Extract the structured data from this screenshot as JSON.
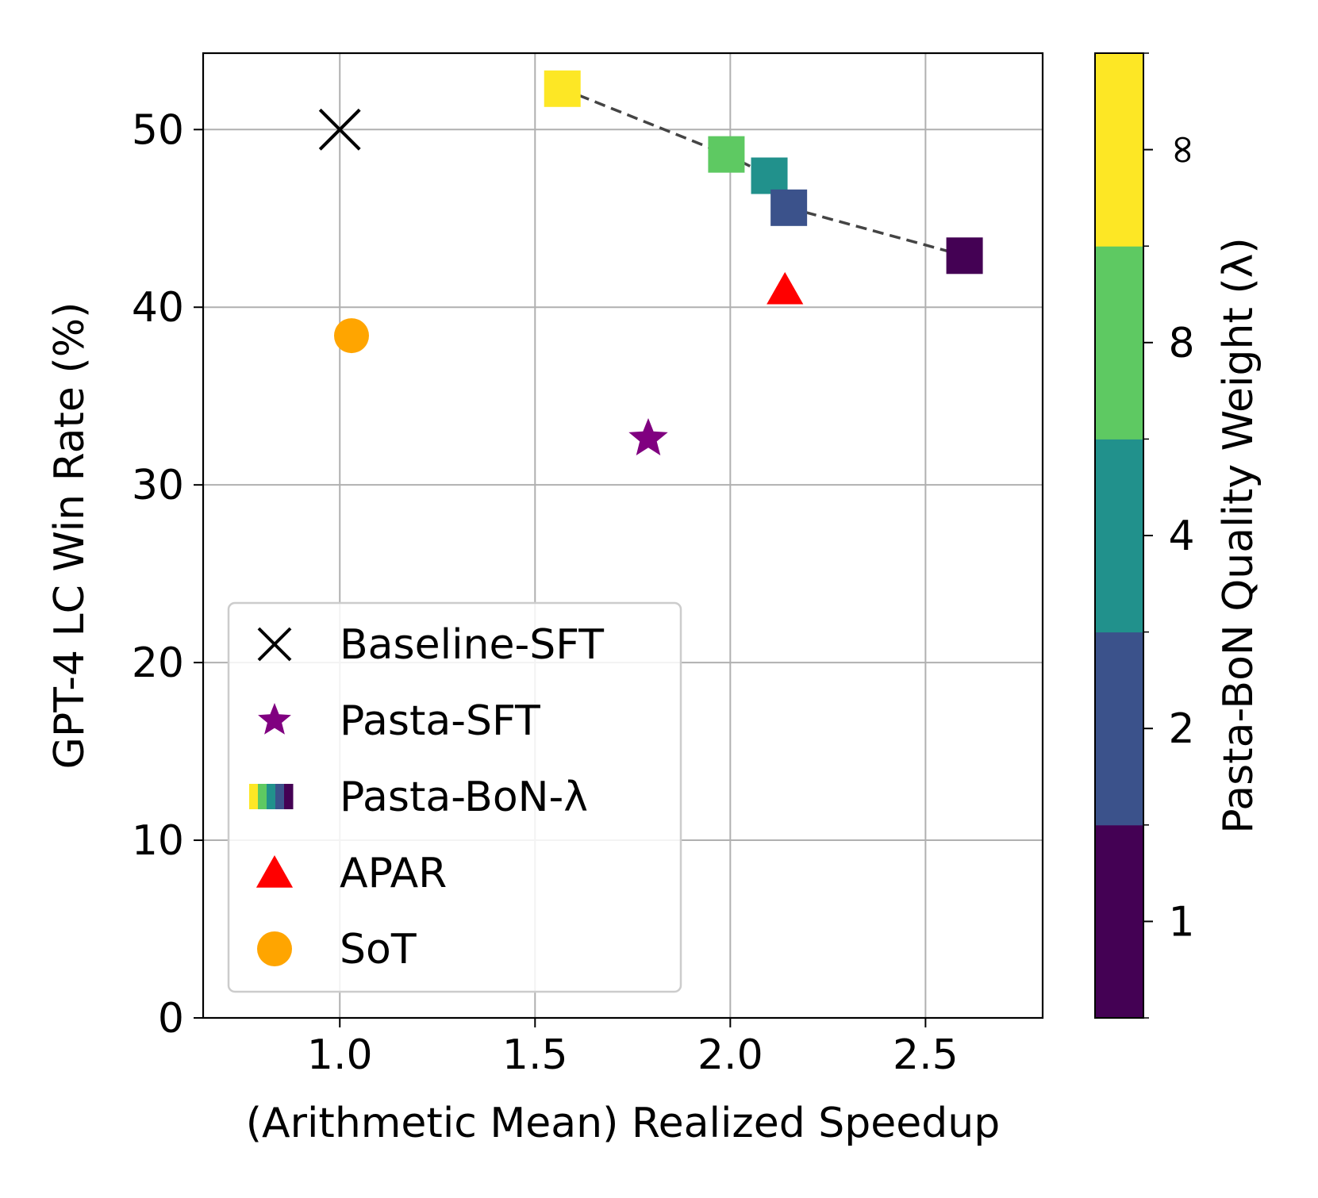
{
  "chart_data": {
    "type": "scatter",
    "title": "",
    "xlabel": "(Arithmetic Mean) Realized Speedup",
    "ylabel": "GPT-4 LC Win Rate (%)",
    "xlim": [
      0.65,
      2.8
    ],
    "ylim": [
      0,
      54.3
    ],
    "xticks": [
      1.0,
      1.5,
      2.0,
      2.5
    ],
    "xtick_labels": [
      "1.0",
      "1.5",
      "2.0",
      "2.5"
    ],
    "yticks": [
      0,
      10,
      20,
      30,
      40,
      50
    ],
    "ytick_labels": [
      "0",
      "10",
      "20",
      "30",
      "40",
      "50"
    ],
    "grid": true,
    "legend_position": "lower-left",
    "series": [
      {
        "name": "Baseline-SFT",
        "marker": "x",
        "color": "#000000",
        "points": [
          {
            "x": 1.0,
            "y": 50.0
          }
        ]
      },
      {
        "name": "Pasta-SFT",
        "marker": "star",
        "color": "#800080",
        "points": [
          {
            "x": 1.79,
            "y": 32.6
          }
        ]
      },
      {
        "name": "Pasta-BoN-λ",
        "marker": "square",
        "color": "viridis",
        "connected": true,
        "line_style": "dashed",
        "points": [
          {
            "x": 1.57,
            "y": 52.3,
            "lambda": "∞",
            "color": "#fde725"
          },
          {
            "x": 1.99,
            "y": 48.6,
            "lambda": "8",
            "color": "#5ec962"
          },
          {
            "x": 2.1,
            "y": 47.4,
            "lambda": "4",
            "color": "#21918c"
          },
          {
            "x": 2.15,
            "y": 45.6,
            "lambda": "2",
            "color": "#3b528b"
          },
          {
            "x": 2.6,
            "y": 42.9,
            "lambda": "1",
            "color": "#440154"
          }
        ]
      },
      {
        "name": "APAR",
        "marker": "triangle",
        "color": "#ff0000",
        "points": [
          {
            "x": 2.14,
            "y": 41.0
          }
        ]
      },
      {
        "name": "SoT",
        "marker": "circle",
        "color": "#ffa500",
        "points": [
          {
            "x": 1.03,
            "y": 38.4
          }
        ]
      }
    ],
    "colorbar": {
      "label": "Pasta-BoN Quality Weight (λ)",
      "levels": [
        "1",
        "2",
        "4",
        "8",
        "∞"
      ],
      "colors": [
        "#440154",
        "#3b528b",
        "#21918c",
        "#5ec962",
        "#fde725"
      ]
    }
  }
}
